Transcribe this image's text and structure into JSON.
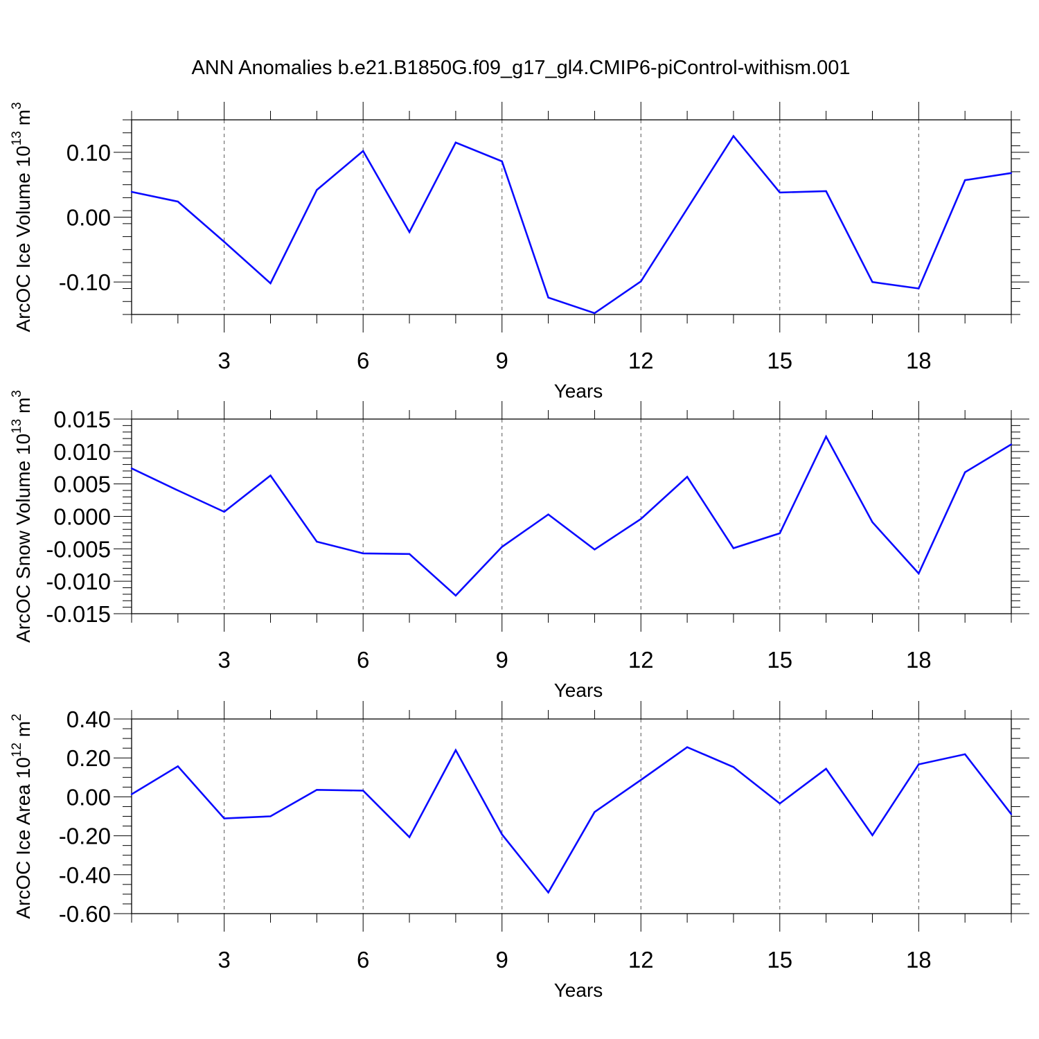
{
  "title": "ANN Anomalies b.e21.B1850G.f09_g17_gl4.CMIP6-piControl-withism.001",
  "line_color": "#0a0aff",
  "chart_data": [
    {
      "type": "line",
      "ylabel_main": "ArcOC Ice Volume 10",
      "ylabel_exp": "13",
      "ylabel_unit": " m",
      "ylabel_unit_exp": "3",
      "xlabel": "Years",
      "xlim": [
        1,
        20
      ],
      "ylim": [
        -0.15,
        0.15
      ],
      "xticks": [
        3,
        6,
        9,
        12,
        15,
        18
      ],
      "xtick_labels": [
        "3",
        "6",
        "9",
        "12",
        "15",
        "18"
      ],
      "yticks": [
        -0.1,
        0.0,
        0.1
      ],
      "ytick_labels": [
        "-0.10",
        "0.00",
        "0.10"
      ],
      "yminor": 0.02,
      "x": [
        1,
        2,
        3,
        4,
        5,
        6,
        7,
        8,
        9,
        10,
        11,
        12,
        13,
        14,
        15,
        16,
        17,
        18,
        19,
        20
      ],
      "y": [
        0.039,
        0.024,
        -0.038,
        -0.102,
        0.042,
        0.102,
        -0.023,
        0.115,
        0.086,
        -0.124,
        -0.148,
        -0.099,
        0.013,
        0.125,
        0.038,
        0.04,
        -0.1,
        -0.11,
        0.057,
        0.068
      ]
    },
    {
      "type": "line",
      "ylabel_main": "ArcOC Snow Volume 10",
      "ylabel_exp": "13",
      "ylabel_unit": " m",
      "ylabel_unit_exp": "3",
      "xlabel": "Years",
      "xlim": [
        1,
        20
      ],
      "ylim": [
        -0.015,
        0.015
      ],
      "xticks": [
        3,
        6,
        9,
        12,
        15,
        18
      ],
      "xtick_labels": [
        "3",
        "6",
        "9",
        "12",
        "15",
        "18"
      ],
      "yticks": [
        -0.015,
        -0.01,
        -0.005,
        0.0,
        0.005,
        0.01,
        0.015
      ],
      "ytick_labels": [
        "-0.015",
        "-0.010",
        "-0.005",
        "0.000",
        "0.005",
        "0.010",
        "0.015"
      ],
      "yminor": 0.001,
      "x": [
        1,
        2,
        3,
        4,
        5,
        6,
        7,
        8,
        9,
        10,
        11,
        12,
        13,
        14,
        15,
        16,
        17,
        18,
        19,
        20
      ],
      "y": [
        0.0074,
        0.004,
        0.0007,
        0.0063,
        -0.0039,
        -0.0057,
        -0.0058,
        -0.0122,
        -0.0047,
        0.0003,
        -0.0051,
        -0.0004,
        0.0061,
        -0.0049,
        -0.0026,
        0.0123,
        -0.0009,
        -0.0088,
        0.0068,
        0.0111
      ]
    },
    {
      "type": "line",
      "ylabel_main": "ArcOC Ice Area 10",
      "ylabel_exp": "12",
      "ylabel_unit": " m",
      "ylabel_unit_exp": "2",
      "xlabel": "Years",
      "xlim": [
        1,
        20
      ],
      "ylim": [
        -0.6,
        0.4
      ],
      "xticks": [
        3,
        6,
        9,
        12,
        15,
        18
      ],
      "xtick_labels": [
        "3",
        "6",
        "9",
        "12",
        "15",
        "18"
      ],
      "yticks": [
        -0.6,
        -0.4,
        -0.2,
        0.0,
        0.2,
        0.4
      ],
      "ytick_labels": [
        "-0.60",
        "-0.40",
        "-0.20",
        "0.00",
        "0.20",
        "0.40"
      ],
      "yminor": 0.05,
      "x": [
        1,
        2,
        3,
        4,
        5,
        6,
        7,
        8,
        9,
        10,
        11,
        12,
        13,
        14,
        15,
        16,
        17,
        18,
        19,
        20
      ],
      "y": [
        0.013,
        0.157,
        -0.111,
        -0.1,
        0.036,
        0.032,
        -0.207,
        0.24,
        -0.193,
        -0.491,
        -0.078,
        0.087,
        0.255,
        0.153,
        -0.034,
        0.144,
        -0.197,
        0.167,
        0.219,
        -0.089
      ]
    }
  ]
}
